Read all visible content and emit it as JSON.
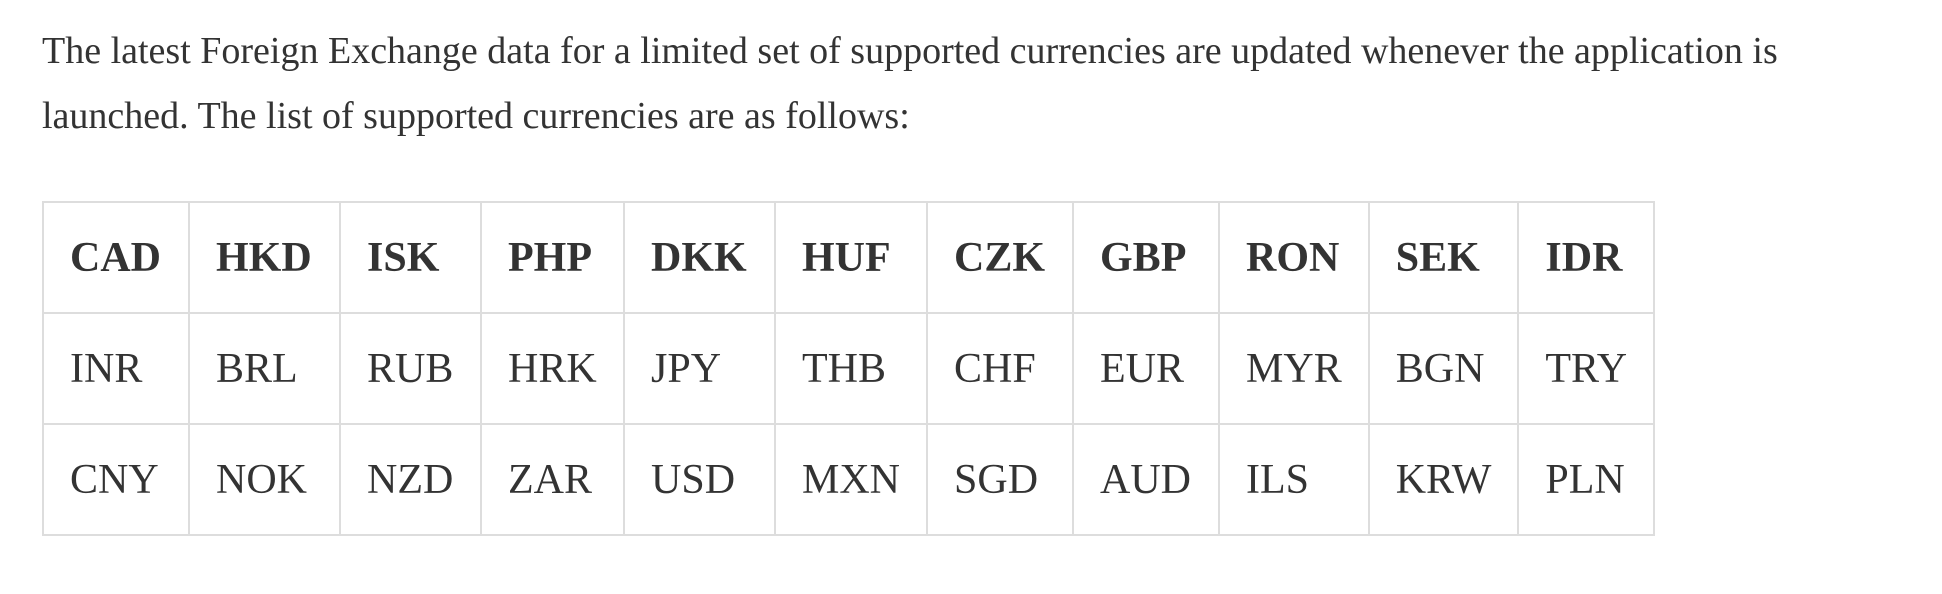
{
  "intro": {
    "text": "The latest Foreign Exchange data for a limited set of supported currencies are updated whenever the application is launched. The list of supported currencies are as follows:"
  },
  "currency_table": {
    "header": [
      "CAD",
      "HKD",
      "ISK",
      "PHP",
      "DKK",
      "HUF",
      "CZK",
      "GBP",
      "RON",
      "SEK",
      "IDR"
    ],
    "rows": [
      [
        "INR",
        "BRL",
        "RUB",
        "HRK",
        "JPY",
        "THB",
        "CHF",
        "EUR",
        "MYR",
        "BGN",
        "TRY"
      ],
      [
        "CNY",
        "NOK",
        "NZD",
        "ZAR",
        "USD",
        "MXN",
        "SGD",
        "AUD",
        "ILS",
        "KRW",
        "PLN"
      ]
    ]
  },
  "colors": {
    "text": "#333333",
    "border": "#dddddd",
    "background": "#ffffff"
  }
}
